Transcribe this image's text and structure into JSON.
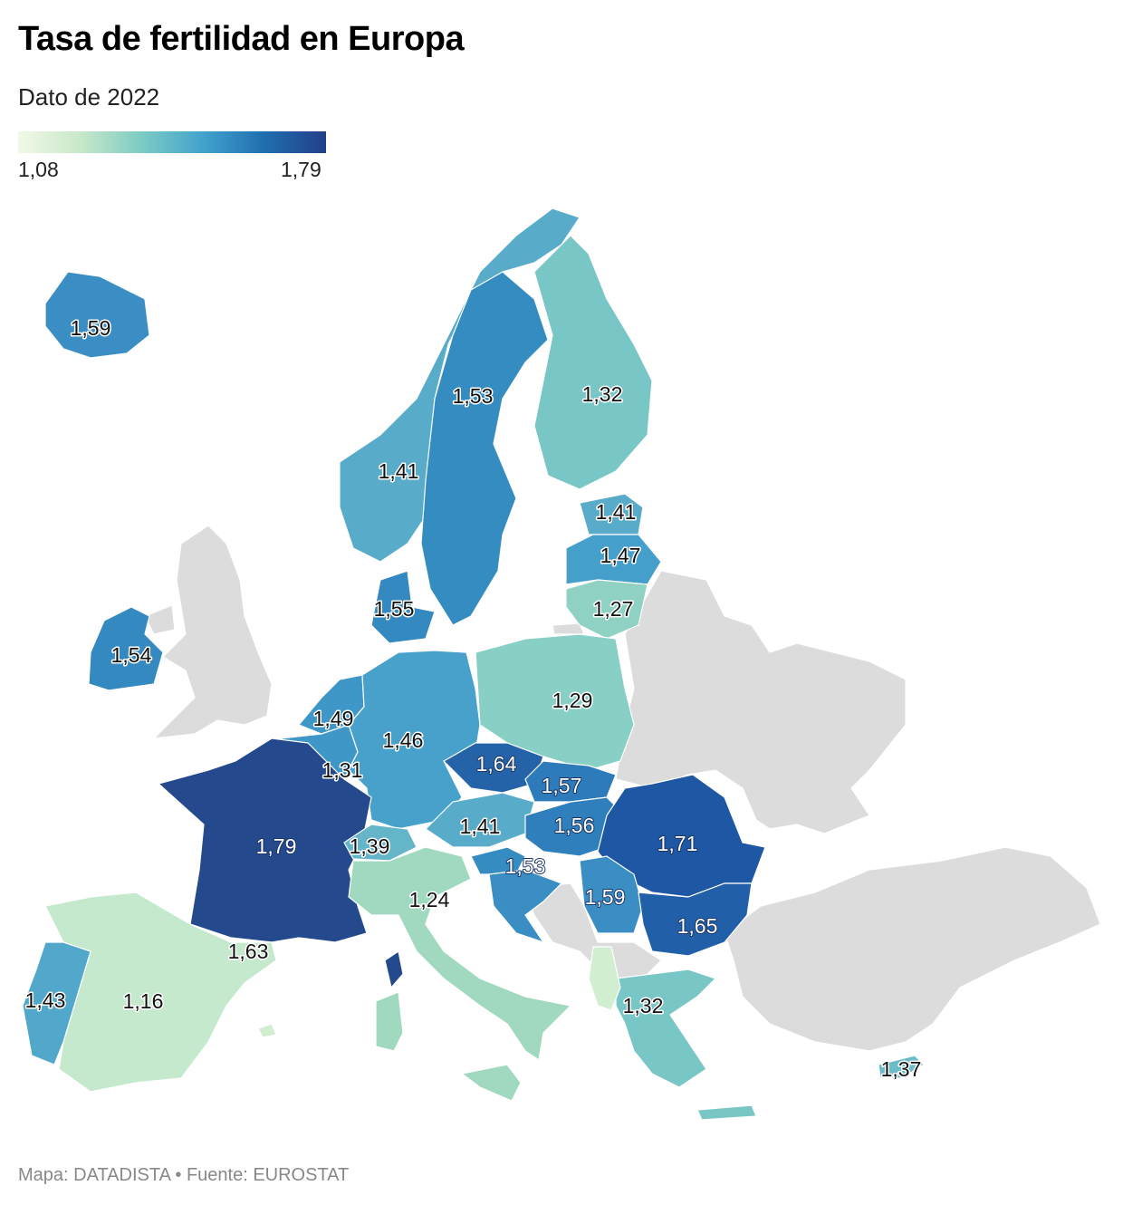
{
  "title": "Tasa de fertilidad en Europa",
  "subtitle": "Dato de 2022",
  "legend": {
    "min": "1,08",
    "max": "1,79",
    "colors": [
      "#f2f9e8",
      "#c9e8c9",
      "#7ccbc4",
      "#43a2cc",
      "#1f6eb0",
      "#233f87"
    ]
  },
  "nodata_color": "#dcdcdc",
  "countries": [
    {
      "name": "iceland",
      "value": "1,59",
      "color": "#3a8ec3"
    },
    {
      "name": "norway",
      "value": "1,41",
      "color": "#58acc9"
    },
    {
      "name": "sweden",
      "value": "1,53",
      "color": "#348cc1"
    },
    {
      "name": "finland",
      "value": "1,32",
      "color": "#78c6c5"
    },
    {
      "name": "estonia",
      "value": "1,41",
      "color": "#58acc9"
    },
    {
      "name": "latvia",
      "value": "1,47",
      "color": "#459fcb"
    },
    {
      "name": "lithuania",
      "value": "1,27",
      "color": "#8fd2c3"
    },
    {
      "name": "denmark",
      "value": "1,55",
      "color": "#3489c1"
    },
    {
      "name": "ireland",
      "value": "1,54",
      "color": "#3489c1"
    },
    {
      "name": "netherlands",
      "value": "1,49",
      "color": "#3f97c8"
    },
    {
      "name": "belgium",
      "value": "1,31",
      "color": "#3f97c8"
    },
    {
      "name": "germany",
      "value": "1,46",
      "color": "#47a1cb"
    },
    {
      "name": "poland",
      "value": "1,29",
      "color": "#88cfc5"
    },
    {
      "name": "czechia",
      "value": "1,64",
      "color": "#2563a8"
    },
    {
      "name": "slovakia",
      "value": "1,57",
      "color": "#2d7bbb"
    },
    {
      "name": "austria",
      "value": "1,41",
      "color": "#58acc9"
    },
    {
      "name": "hungary",
      "value": "1,56",
      "color": "#307fbd"
    },
    {
      "name": "romania",
      "value": "1,71",
      "color": "#1e57a3"
    },
    {
      "name": "france",
      "value": "1,79",
      "color": "#244a8d"
    },
    {
      "name": "switzerland",
      "value": "1,39",
      "color": "#64b5c8"
    },
    {
      "name": "slovenia",
      "value": "1,53",
      "color": "#348cc1"
    },
    {
      "name": "croatia",
      "value": "1,59",
      "color": "#3a8ec3"
    },
    {
      "name": "bulgaria",
      "value": "1,65",
      "color": "#2160a8"
    },
    {
      "name": "italy",
      "value": "1,24",
      "color": "#a0d9bf"
    },
    {
      "name": "spain",
      "value": "1,16",
      "color": "#c5e9cd"
    },
    {
      "name": "portugal",
      "value": "1,43",
      "color": "#51a8ca"
    },
    {
      "name": "malta",
      "value": "1,63",
      "color": "#d2eed0"
    },
    {
      "name": "greece",
      "value": "1,32",
      "color": "#78c6c5"
    },
    {
      "name": "cyprus",
      "value": "1,37",
      "color": "#6abdc7"
    }
  ],
  "footer": "Mapa: DATADISTA • Fuente: EUROSTAT"
}
